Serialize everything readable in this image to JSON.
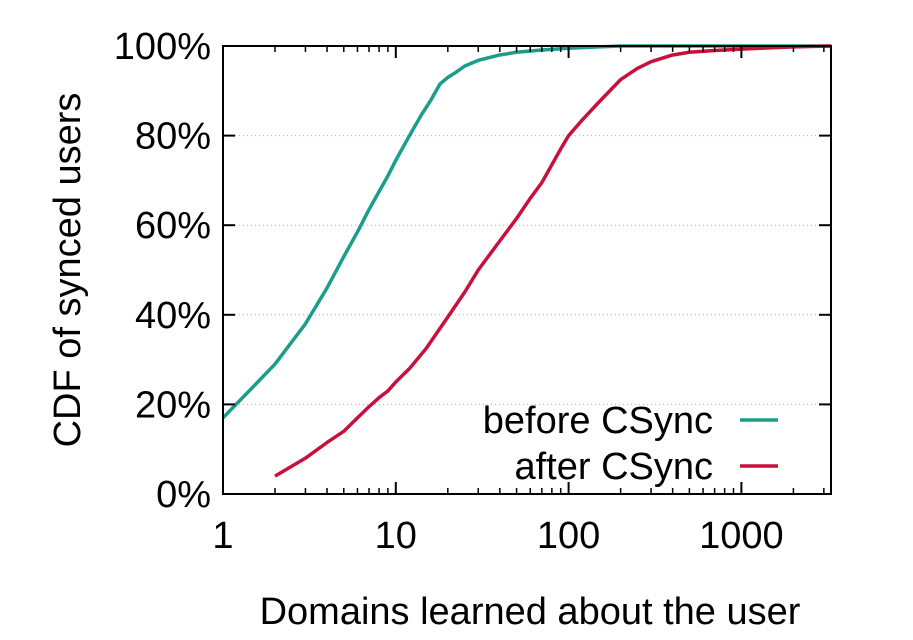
{
  "chart_data": {
    "type": "line",
    "xlabel": "Domains learned about the user",
    "ylabel": "CDF of synced users",
    "xscale": "log",
    "xlim": [
      1,
      3300
    ],
    "ylim": [
      0,
      100
    ],
    "x_ticks": [
      {
        "value": 1,
        "label": "1"
      },
      {
        "value": 10,
        "label": "10"
      },
      {
        "value": 100,
        "label": "100"
      },
      {
        "value": 1000,
        "label": "1000"
      }
    ],
    "y_ticks": [
      {
        "value": 0,
        "label": "0%"
      },
      {
        "value": 20,
        "label": "20%"
      },
      {
        "value": 40,
        "label": "40%"
      },
      {
        "value": 60,
        "label": "60%"
      },
      {
        "value": 80,
        "label": "80%"
      },
      {
        "value": 100,
        "label": "100%"
      }
    ],
    "grid": "horizontal dotted",
    "legend_position": "bottom-right",
    "series": [
      {
        "name": "before CSync",
        "color": "#1a9e8a",
        "points": [
          [
            1,
            17
          ],
          [
            1.5,
            24
          ],
          [
            2,
            29
          ],
          [
            3,
            38
          ],
          [
            4,
            46
          ],
          [
            5,
            53
          ],
          [
            6,
            58.5
          ],
          [
            7,
            63.5
          ],
          [
            8,
            67.5
          ],
          [
            9,
            71
          ],
          [
            10,
            74.5
          ],
          [
            12,
            80
          ],
          [
            14,
            84.5
          ],
          [
            16,
            88
          ],
          [
            18,
            91.5
          ],
          [
            20,
            93
          ],
          [
            22,
            94
          ],
          [
            25,
            95.5
          ],
          [
            30,
            96.8
          ],
          [
            40,
            98
          ],
          [
            50,
            98.6
          ],
          [
            70,
            99.1
          ],
          [
            100,
            99.5
          ],
          [
            150,
            99.8
          ],
          [
            200,
            100
          ],
          [
            3300,
            100
          ]
        ]
      },
      {
        "name": "after CSync",
        "color": "#c8103c",
        "points": [
          [
            2,
            4
          ],
          [
            3,
            8
          ],
          [
            4,
            11.5
          ],
          [
            5,
            14
          ],
          [
            6,
            17
          ],
          [
            7,
            19.5
          ],
          [
            8,
            21.5
          ],
          [
            9,
            23
          ],
          [
            10,
            25
          ],
          [
            12,
            28
          ],
          [
            15,
            32.5
          ],
          [
            20,
            39.5
          ],
          [
            25,
            45
          ],
          [
            30,
            50
          ],
          [
            40,
            56.5
          ],
          [
            50,
            61.5
          ],
          [
            60,
            66
          ],
          [
            70,
            69.5
          ],
          [
            80,
            73.5
          ],
          [
            90,
            77
          ],
          [
            100,
            80
          ],
          [
            120,
            83.5
          ],
          [
            150,
            87.5
          ],
          [
            200,
            92.5
          ],
          [
            250,
            95
          ],
          [
            300,
            96.5
          ],
          [
            400,
            98
          ],
          [
            500,
            98.6
          ],
          [
            700,
            99
          ],
          [
            1000,
            99.3
          ],
          [
            1500,
            99.6
          ],
          [
            2000,
            99.8
          ],
          [
            3300,
            100
          ]
        ]
      }
    ]
  }
}
